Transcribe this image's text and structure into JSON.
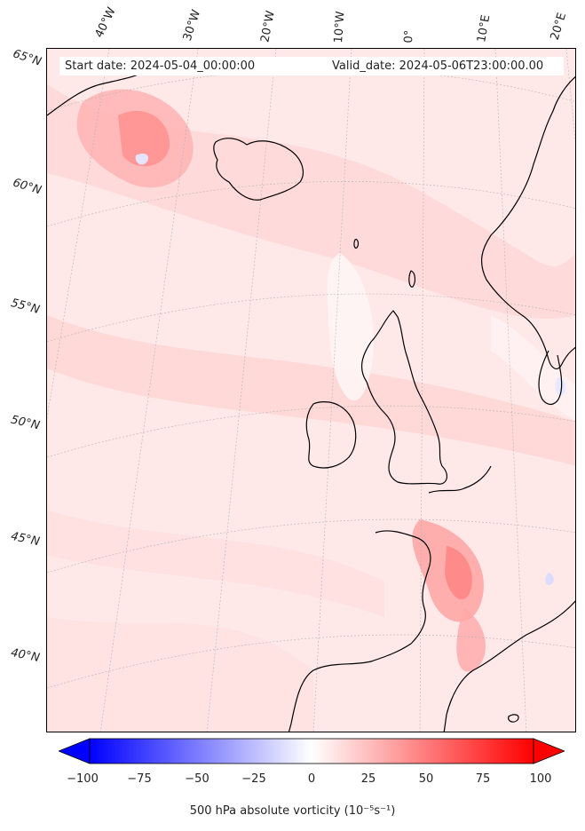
{
  "header": {
    "start_date": "Start date: 2024-05-04_00:00:00",
    "valid_date": "Valid_date: 2024-05-06T23:00:00.00"
  },
  "longitude_labels": [
    "40°W",
    "30°W",
    "20°W",
    "10°W",
    "0°",
    "10°E",
    "20°E"
  ],
  "latitude_labels": [
    "65°N",
    "60°N",
    "55°N",
    "50°N",
    "45°N",
    "40°N"
  ],
  "colorbar": {
    "title": "500 hPa absolute vorticity (10⁻⁵s⁻¹)",
    "ticks": [
      "−100",
      "−75",
      "−50",
      "−25",
      "0",
      "25",
      "50",
      "75",
      "100"
    ],
    "min": -100,
    "max": 100,
    "extend": "both",
    "colormap": "blue-white-red"
  },
  "map": {
    "projection": "polar-stereographic",
    "region": "North Atlantic and Western Europe",
    "coastline_color": "#000000",
    "background_color": "#ffe6e6",
    "graticule": "dashed light grey"
  }
}
